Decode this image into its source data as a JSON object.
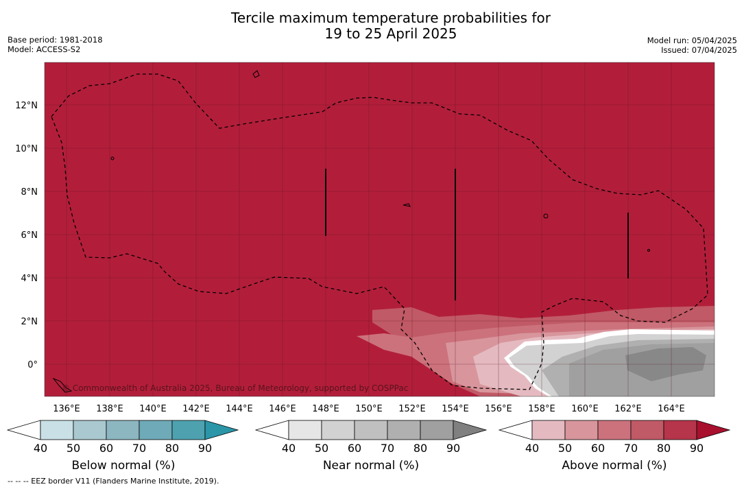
{
  "title": {
    "line1": "Tercile maximum temperature probabilities for",
    "line2": "19 to 25 April 2025"
  },
  "meta_left": {
    "base_period": "Base period: 1981-2018",
    "model": "Model: ACCESS-S2"
  },
  "meta_right": {
    "model_run": "Model run: 05/04/2025",
    "issued": "Issued: 07/04/2025"
  },
  "map": {
    "lon_labels": [
      "136°E",
      "138°E",
      "140°E",
      "142°E",
      "144°E",
      "146°E",
      "148°E",
      "150°E",
      "152°E",
      "154°E",
      "156°E",
      "158°E",
      "160°E",
      "162°E",
      "164°E"
    ],
    "lat_labels": [
      "12°N",
      "10°N",
      "8°N",
      "6°N",
      "4°N",
      "2°N",
      "0°"
    ],
    "copyright": "© Commonwealth of Australia 2025, Bureau of Meteorology, supported by COSPPac",
    "colors": {
      "above_dominant": "#b21e3a",
      "near_normal": "#a0a0a0"
    }
  },
  "colorbars": [
    {
      "label": "Below normal (%)",
      "ticks": [
        "40",
        "50",
        "60",
        "70",
        "80",
        "90"
      ],
      "colors": [
        "#ffffff",
        "#c8e0e6",
        "#aac8cf",
        "#8cb6c0",
        "#6eaab7",
        "#4ea2b0",
        "#2a96a8"
      ]
    },
    {
      "label": "Near normal (%)",
      "ticks": [
        "40",
        "50",
        "60",
        "70",
        "80",
        "90"
      ],
      "colors": [
        "#ffffff",
        "#e6e6e6",
        "#d2d2d2",
        "#c0c0c0",
        "#b0b0b0",
        "#a0a0a0",
        "#808080"
      ]
    },
    {
      "label": "Above normal (%)",
      "ticks": [
        "40",
        "50",
        "60",
        "70",
        "80",
        "90"
      ],
      "colors": [
        "#ffffff",
        "#e4bac0",
        "#d8959c",
        "#cc727c",
        "#c05a66",
        "#b6354a",
        "#a8102e"
      ]
    }
  ],
  "footer": "--  --  -- EEZ border V11 (Flanders Marine Institute, 2019)."
}
